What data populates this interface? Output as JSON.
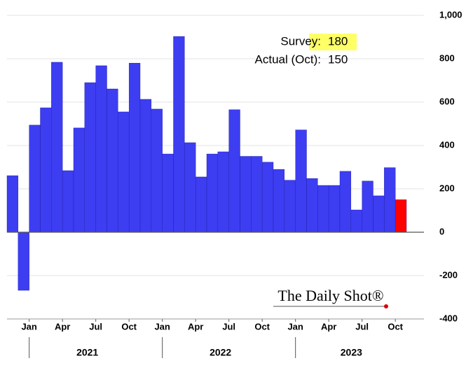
{
  "chart_data": {
    "type": "bar",
    "categories": [
      null,
      null,
      "Jan",
      null,
      null,
      "Apr",
      null,
      null,
      "Jul",
      null,
      null,
      "Oct",
      null,
      null,
      "Jan",
      null,
      null,
      "Apr",
      null,
      null,
      "Jul",
      null,
      null,
      "Oct",
      null,
      null,
      "Jan",
      null,
      null,
      "Apr",
      null,
      null,
      "Jul",
      null,
      null,
      "Oct"
    ],
    "values": [
      261,
      -268,
      494,
      574,
      784,
      284,
      481,
      690,
      768,
      661,
      555,
      780,
      613,
      568,
      361,
      903,
      413,
      255,
      361,
      371,
      565,
      350,
      350,
      323,
      290,
      240,
      472,
      248,
      216,
      216,
      281,
      103,
      236,
      168,
      298,
      150
    ],
    "colors": [
      "#3d3df2",
      "#3d3df2",
      "#3d3df2",
      "#3d3df2",
      "#3d3df2",
      "#3d3df2",
      "#3d3df2",
      "#3d3df2",
      "#3d3df2",
      "#3d3df2",
      "#3d3df2",
      "#3d3df2",
      "#3d3df2",
      "#3d3df2",
      "#3d3df2",
      "#3d3df2",
      "#3d3df2",
      "#3d3df2",
      "#3d3df2",
      "#3d3df2",
      "#3d3df2",
      "#3d3df2",
      "#3d3df2",
      "#3d3df2",
      "#3d3df2",
      "#3d3df2",
      "#3d3df2",
      "#3d3df2",
      "#3d3df2",
      "#3d3df2",
      "#3d3df2",
      "#3d3df2",
      "#3d3df2",
      "#3d3df2",
      "#3d3df2",
      "#ff0000"
    ],
    "year_labels": [
      "2021",
      "2022",
      "2023"
    ],
    "ylim": [
      -400,
      1000
    ],
    "yticks": [
      -400,
      -200,
      0,
      200,
      400,
      600,
      800,
      {
        "value": 1000,
        "label": "1,000"
      }
    ],
    "grid": true,
    "annotations": {
      "survey_label": "Survey:",
      "survey_value": "180",
      "actual_label": "Actual (Oct):",
      "actual_value": "150"
    },
    "watermark": "The Daily Shot®"
  }
}
